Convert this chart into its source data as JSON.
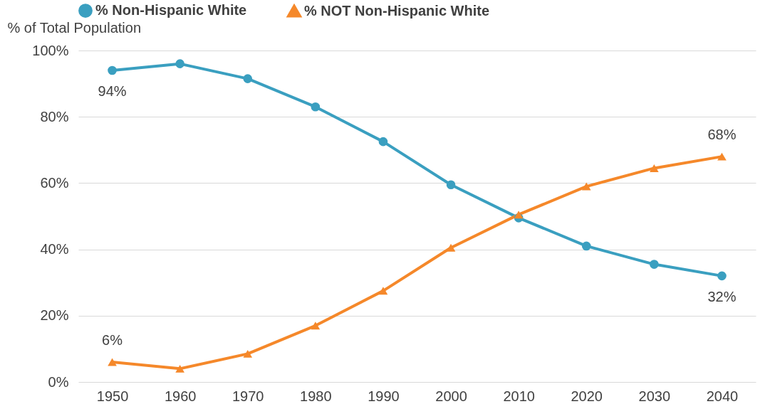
{
  "chart_data": {
    "type": "line",
    "ylabel": "% of Total Population",
    "categories": [
      "1950",
      "1960",
      "1970",
      "1980",
      "1990",
      "2000",
      "2010",
      "2020",
      "2030",
      "2040"
    ],
    "series": [
      {
        "name": "% Non-Hispanic White",
        "color": "#3a9fc0",
        "marker": "circle",
        "values": [
          94,
          96,
          91.5,
          83,
          72.5,
          59.5,
          49.5,
          41,
          35.5,
          32
        ],
        "value_labels": [
          "94%",
          null,
          null,
          null,
          null,
          null,
          null,
          null,
          null,
          "32%"
        ]
      },
      {
        "name": "% NOT Non-Hispanic White",
        "color": "#f5882a",
        "marker": "triangle",
        "values": [
          6,
          4,
          8.5,
          17,
          27.5,
          40.5,
          50.5,
          59,
          64.5,
          68
        ],
        "value_labels": [
          "6%",
          null,
          null,
          null,
          null,
          null,
          null,
          null,
          null,
          "68%"
        ]
      }
    ],
    "ylim": [
      0,
      100
    ],
    "yticks": [
      {
        "value": 0,
        "label": "0%"
      },
      {
        "value": 20,
        "label": "20%"
      },
      {
        "value": 40,
        "label": "40%"
      },
      {
        "value": 60,
        "label": "60%"
      },
      {
        "value": 80,
        "label": "80%"
      },
      {
        "value": 100,
        "label": "100%"
      }
    ],
    "grid": "y",
    "legend": "top",
    "line_style": "solid"
  }
}
